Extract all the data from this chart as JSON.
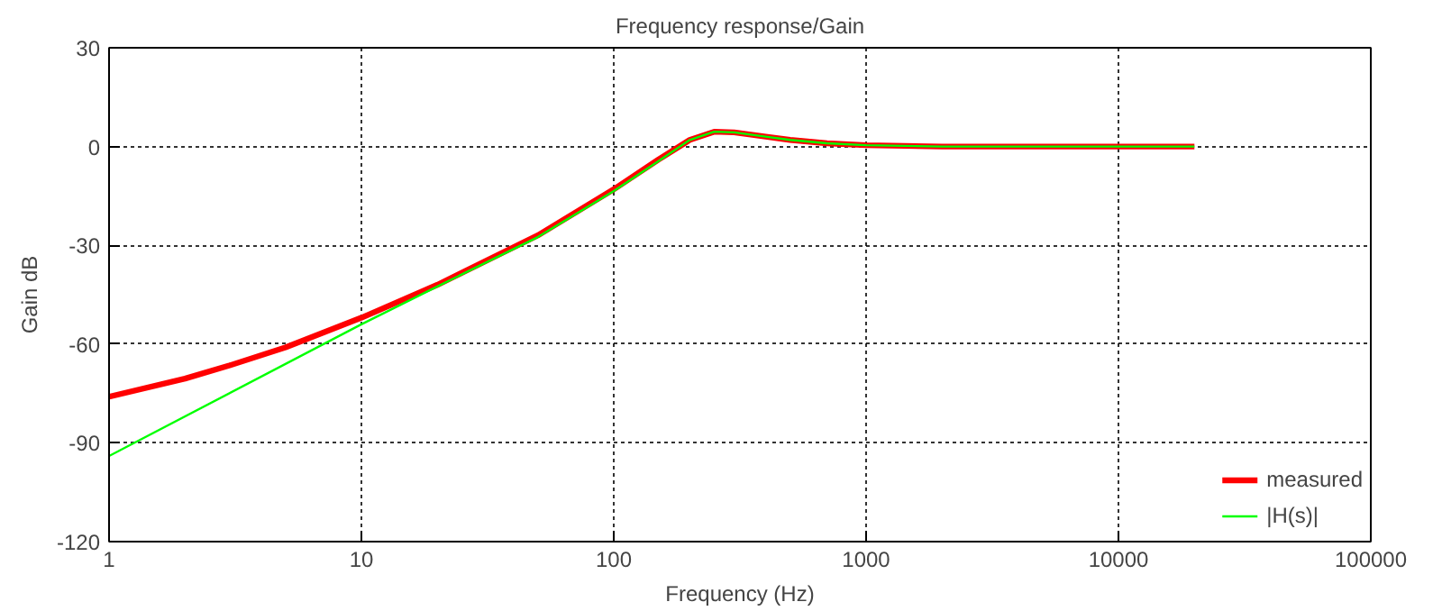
{
  "chart_data": {
    "type": "line",
    "title": "Frequency response/Gain",
    "xlabel": "Frequency (Hz)",
    "ylabel": "Gain dB",
    "log": "x",
    "xlim": [
      1,
      100000
    ],
    "xticks": [
      1,
      10,
      100,
      1000,
      10000,
      100000
    ],
    "ylim": [
      -120,
      30
    ],
    "yticks": [
      -120,
      -90,
      -60,
      -30,
      0,
      30
    ],
    "grid": true,
    "legend": "bottom right",
    "line_style": "solid",
    "series": [
      {
        "name": "measured",
        "color": "#ff0000",
        "x": [
          1,
          2,
          3,
          5,
          10,
          20,
          50,
          100,
          150,
          200,
          250,
          300,
          400,
          500,
          700,
          1000,
          2000,
          20000
        ],
        "values": [
          -76,
          -70.5,
          -66.5,
          -61,
          -52,
          -42,
          -27,
          -13,
          -4,
          2,
          4.5,
          4.3,
          3,
          2,
          1,
          0.4,
          0,
          0
        ]
      },
      {
        "name": "|H(s)|",
        "color": "#00ff00",
        "x": [
          1,
          10,
          20,
          50,
          100,
          150,
          200,
          250,
          300,
          400,
          500,
          700,
          1000,
          2000,
          20000
        ],
        "values": [
          -94,
          -54,
          -42.5,
          -27.5,
          -13.5,
          -4.5,
          2,
          4.5,
          4.3,
          3,
          2,
          1,
          0.4,
          0,
          0
        ]
      }
    ]
  }
}
